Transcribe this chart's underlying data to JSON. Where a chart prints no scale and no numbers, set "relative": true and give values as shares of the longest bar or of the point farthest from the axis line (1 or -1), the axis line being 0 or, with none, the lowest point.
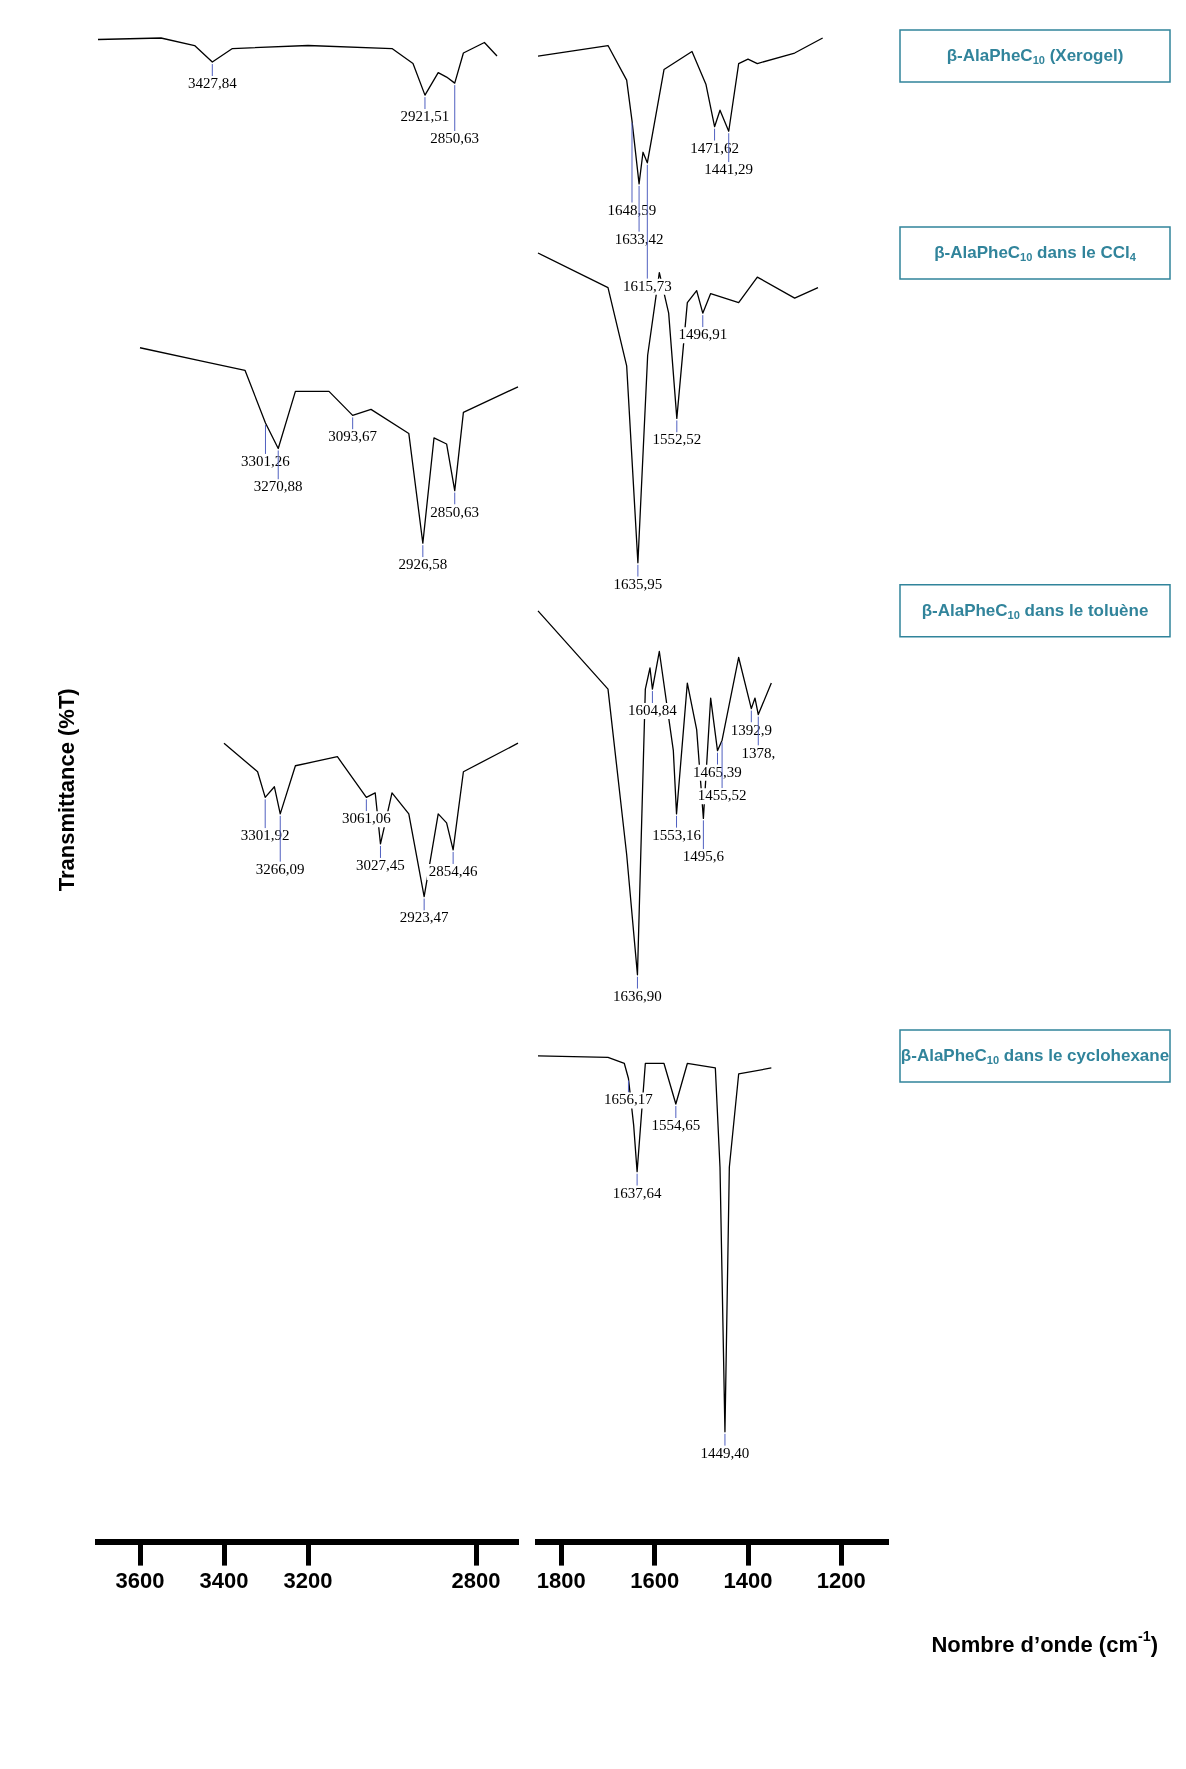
{
  "chart_data": [
    {
      "type": "line",
      "relative": true,
      "ylabel": "Transmittance (%T)",
      "xlim": [
        3700,
        2700
      ],
      "xticks": [
        3600,
        3400,
        3200,
        2800
      ],
      "series": [
        {
          "name": null,
          "color": "#000000",
          "x": [
            3700,
            3550,
            3470,
            3427.84,
            3380,
            3200,
            3000,
            2950,
            2921.51,
            2890,
            2870,
            2850.63,
            2830,
            2780,
            2750
          ],
          "values": [
            0.999,
            1.0,
            0.995,
            0.984,
            0.993,
            0.995,
            0.993,
            0.983,
            0.962,
            0.977,
            0.974,
            0.97,
            0.99,
            0.997,
            0.988
          ]
        },
        {
          "name": null,
          "color": "#000000",
          "x": [
            3600,
            3450,
            3350,
            3301.26,
            3270.88,
            3230,
            3150,
            3093.67,
            3050,
            2960,
            2926.58,
            2900,
            2870,
            2850.63,
            2830,
            2700
          ],
          "values": [
            0.794,
            0.785,
            0.779,
            0.744,
            0.727,
            0.765,
            0.765,
            0.749,
            0.753,
            0.737,
            0.664,
            0.734,
            0.73,
            0.699,
            0.751,
            0.768
          ]
        },
        {
          "name": null,
          "color": "#000000",
          "x": [
            3400,
            3320,
            3301.92,
            3280,
            3266.09,
            3230,
            3130,
            3061.06,
            3040,
            3027.45,
            3000,
            2960,
            2923.47,
            2890,
            2870,
            2854.46,
            2830,
            2700
          ],
          "values": [
            0.531,
            0.512,
            0.495,
            0.502,
            0.484,
            0.516,
            0.522,
            0.495,
            0.498,
            0.464,
            0.498,
            0.484,
            0.429,
            0.484,
            0.478,
            0.46,
            0.512,
            0.531
          ]
        }
      ],
      "annotations": [
        {
          "text": "3427,84",
          "x": 3427.84,
          "y": 0.984
        },
        {
          "text": "2921,51",
          "x": 2921.51,
          "y": 0.962
        },
        {
          "text": "2850,63",
          "x": 2850.63,
          "y": 0.97
        },
        {
          "text": "3301,26",
          "x": 3301.26,
          "y": 0.744
        },
        {
          "text": "3270,88",
          "x": 3270.88,
          "y": 0.727
        },
        {
          "text": "3093,67",
          "x": 3093.67,
          "y": 0.749
        },
        {
          "text": "2926,58",
          "x": 2926.58,
          "y": 0.664
        },
        {
          "text": "2850,63",
          "x": 2850.63,
          "y": 0.699
        },
        {
          "text": "3301,92",
          "x": 3301.92,
          "y": 0.495
        },
        {
          "text": "3266,09",
          "x": 3266.09,
          "y": 0.484
        },
        {
          "text": "3061,06",
          "x": 3061.06,
          "y": 0.495
        },
        {
          "text": "3027,45",
          "x": 3027.45,
          "y": 0.464
        },
        {
          "text": "2923,47",
          "x": 2923.47,
          "y": 0.429
        },
        {
          "text": "2854,46",
          "x": 2854.46,
          "y": 0.46
        }
      ]
    },
    {
      "type": "line",
      "relative": true,
      "xlabel": "Nombre d’onde (cm$^{-1}$)",
      "xlim": [
        1850,
        1100
      ],
      "xticks": [
        1800,
        1600,
        1400,
        1200
      ],
      "series": [
        {
          "name": "β-AlaPheC$_{10}$ (Xerogel)",
          "color": "#000000",
          "x": [
            1850,
            1700,
            1660,
            1648.59,
            1633.42,
            1625,
            1615.73,
            1580,
            1520,
            1490,
            1471.62,
            1460,
            1441.29,
            1420,
            1400,
            1380,
            1300,
            1240
          ],
          "values": [
            0.988,
            0.995,
            0.972,
            0.945,
            0.903,
            0.924,
            0.917,
            0.979,
            0.991,
            0.969,
            0.941,
            0.952,
            0.938,
            0.983,
            0.986,
            0.983,
            0.99,
            1.0
          ]
        },
        {
          "name": "β-AlaPheC$_{10}$ dans le CCl$_{4}$",
          "color": "#000000",
          "x": [
            1850,
            1700,
            1660,
            1635.95,
            1615,
            1590,
            1570,
            1552.52,
            1530,
            1510,
            1496.91,
            1480,
            1420,
            1380,
            1300,
            1250
          ],
          "values": [
            0.857,
            0.834,
            0.782,
            0.651,
            0.789,
            0.844,
            0.817,
            0.747,
            0.824,
            0.832,
            0.817,
            0.83,
            0.824,
            0.841,
            0.827,
            0.834
          ]
        },
        {
          "name": "β-AlaPheC$_{10}$ dans le toluène",
          "color": "#000000",
          "x": [
            1850,
            1700,
            1660,
            1636.9,
            1620,
            1610,
            1604.84,
            1590,
            1560,
            1553.16,
            1530,
            1510,
            1495.6,
            1480,
            1465.39,
            1455.52,
            1420,
            1392.9,
            1385,
            1378,
            1350
          ],
          "values": [
            0.619,
            0.567,
            0.457,
            0.377,
            0.567,
            0.581,
            0.567,
            0.592,
            0.526,
            0.484,
            0.571,
            0.54,
            0.481,
            0.561,
            0.526,
            0.533,
            0.588,
            0.554,
            0.561,
            0.55,
            0.571
          ]
        },
        {
          "name": "β-AlaPheC$_{10}$ dans le cyclohexane",
          "color": "#000000",
          "x": [
            1850,
            1700,
            1665,
            1656.17,
            1645,
            1637.64,
            1620,
            1580,
            1554.65,
            1530,
            1470,
            1460,
            1449.4,
            1440,
            1420,
            1350
          ],
          "values": [
            0.323,
            0.322,
            0.318,
            0.308,
            0.277,
            0.246,
            0.318,
            0.318,
            0.291,
            0.318,
            0.315,
            0.249,
            0.073,
            0.249,
            0.311,
            0.315
          ]
        }
      ],
      "annotations": [
        {
          "text": "1648,59",
          "x": 1648.59,
          "y": 0.945
        },
        {
          "text": "1633,42",
          "x": 1633.42,
          "y": 0.903
        },
        {
          "text": "1615,73",
          "x": 1615.73,
          "y": 0.917
        },
        {
          "text": "1471,62",
          "x": 1471.62,
          "y": 0.941
        },
        {
          "text": "1441,29",
          "x": 1441.29,
          "y": 0.938
        },
        {
          "text": "1635,95",
          "x": 1635.95,
          "y": 0.651
        },
        {
          "text": "1552,52",
          "x": 1552.52,
          "y": 0.747
        },
        {
          "text": "1496,91",
          "x": 1496.91,
          "y": 0.817
        },
        {
          "text": "1636,90",
          "x": 1636.9,
          "y": 0.377
        },
        {
          "text": "1604,84",
          "x": 1604.84,
          "y": 0.567
        },
        {
          "text": "1553,16",
          "x": 1553.16,
          "y": 0.484
        },
        {
          "text": "1495,6",
          "x": 1495.6,
          "y": 0.481
        },
        {
          "text": "1465,39",
          "x": 1465.39,
          "y": 0.526
        },
        {
          "text": "1455,52",
          "x": 1455.52,
          "y": 0.533
        },
        {
          "text": "1392,9",
          "x": 1392.9,
          "y": 0.554
        },
        {
          "text": "1378,",
          "x": 1378,
          "y": 0.55
        },
        {
          "text": "1656,17",
          "x": 1656.17,
          "y": 0.308
        },
        {
          "text": "1637,64",
          "x": 1637.64,
          "y": 0.246
        },
        {
          "text": "1554,65",
          "x": 1554.65,
          "y": 0.291
        },
        {
          "text": "1449,40",
          "x": 1449.4,
          "y": 0.073
        }
      ]
    }
  ]
}
